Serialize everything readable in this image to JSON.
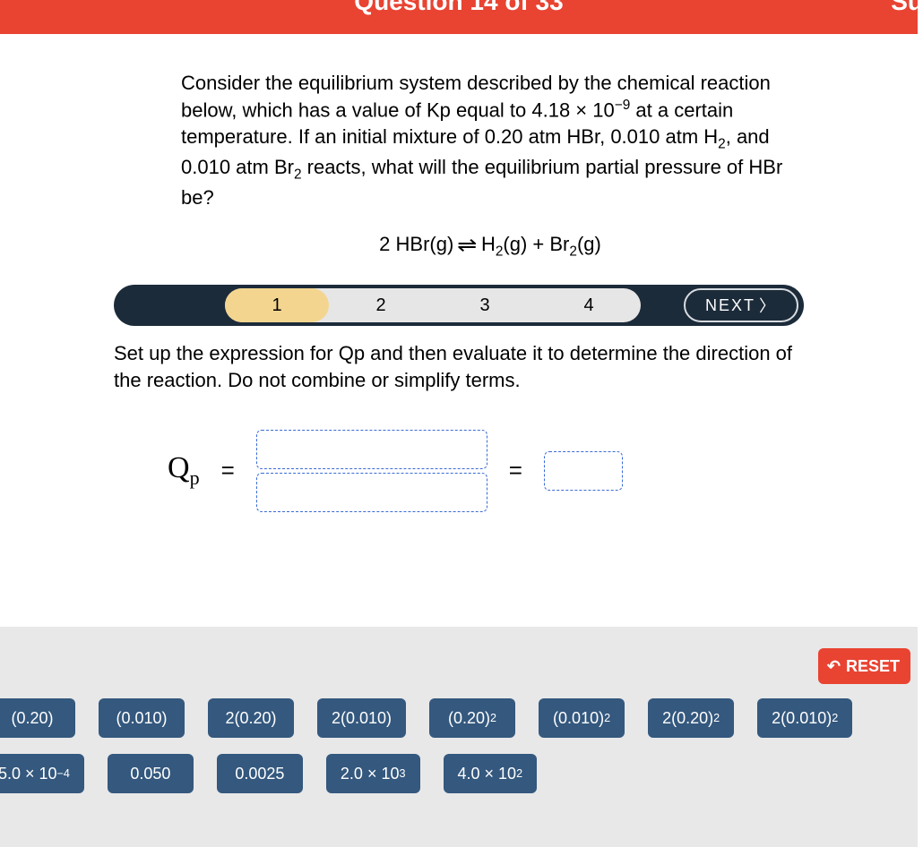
{
  "colors": {
    "header_bg": "#e94332",
    "header_text": "#ffffff",
    "stepper_bg": "#1c2b3a",
    "step_inactive_bg": "#e6e6e6",
    "step_active_bg": "#f3d58f",
    "tile_bg": "#34587e",
    "answer_area_bg": "#e8e8e8",
    "drop_border": "#3a6bd6",
    "reset_bg": "#e94332"
  },
  "header": {
    "title": "Question 14 of 33",
    "right_fragment": "Su"
  },
  "question": {
    "text_html": "Consider the equilibrium system described by the chemical reaction below, which has a value of Kp equal to 4.18 × 10<sup>−9</sup> at a certain temperature. If an initial mixture of 0.20 atm HBr, 0.010 atm H<sub>2</sub>, and 0.010 atm Br<sub>2</sub> reacts, what will the equilibrium partial pressure of HBr be?",
    "equation_html": "2 HBr(g) <span class=\"eq-arrows\">⇌</span> H<sub>2</sub>(g) + Br<sub>2</sub>(g)"
  },
  "stepper": {
    "steps": [
      "1",
      "2",
      "3",
      "4"
    ],
    "active_index": 0,
    "next_label": "NEXT"
  },
  "instruction": "Set up the expression for Qp and then evaluate it to determine the direction of the reaction. Do not combine or simplify terms.",
  "qp": {
    "symbol_html": "Q<sub>p</sub>",
    "equals": "="
  },
  "reset_label": "RESET",
  "tiles": {
    "row1": [
      "(0.20)",
      "(0.010)",
      "2(0.20)",
      "2(0.010)",
      "(0.20)<sup>2</sup>",
      "(0.010)<sup>2</sup>",
      "2(0.20)<sup>2</sup>",
      "2(0.010)<sup>2</sup>"
    ],
    "row2": [
      "5.0 × 10<sup>−4</sup>",
      "0.050",
      "0.0025",
      "2.0 × 10<sup>3</sup>",
      "4.0 × 10<sup>2</sup>"
    ]
  }
}
